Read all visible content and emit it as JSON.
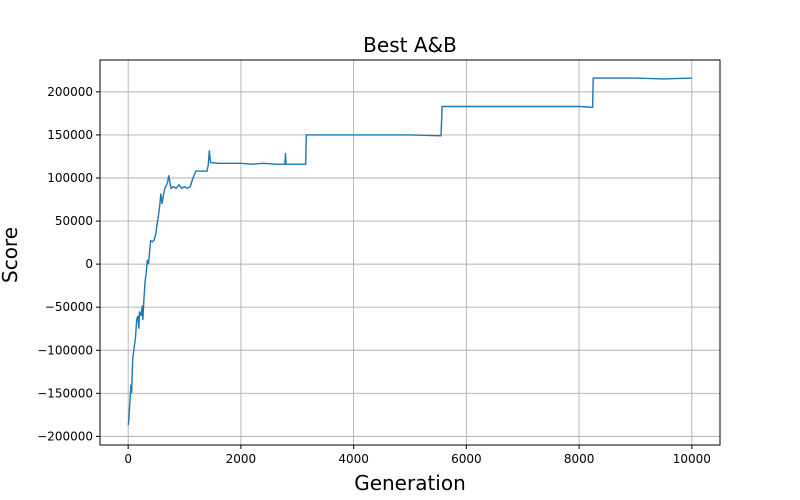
{
  "chart_data": {
    "type": "line",
    "title": "Best A&B",
    "xlabel": "Generation",
    "ylabel": "Score",
    "xlim": [
      -500,
      10500
    ],
    "ylim": [
      -210000,
      237000
    ],
    "x_ticks": [
      0,
      2000,
      4000,
      6000,
      8000,
      10000
    ],
    "x_tick_labels": [
      "0",
      "2000",
      "4000",
      "6000",
      "8000",
      "10000"
    ],
    "y_ticks": [
      -200000,
      -150000,
      -100000,
      -50000,
      0,
      50000,
      100000,
      150000,
      200000
    ],
    "y_tick_labels": [
      "−200000",
      "−150000",
      "−100000",
      "−50000",
      "0",
      "50000",
      "100000",
      "150000",
      "200000"
    ],
    "grid": true,
    "line_color": "#1f77b4",
    "series": [
      {
        "points": [
          [
            0,
            -187000
          ],
          [
            10,
            -182000
          ],
          [
            30,
            -160000
          ],
          [
            50,
            -140000
          ],
          [
            60,
            -150000
          ],
          [
            80,
            -110000
          ],
          [
            100,
            -100000
          ],
          [
            130,
            -85000
          ],
          [
            150,
            -65000
          ],
          [
            170,
            -60000
          ],
          [
            190,
            -75000
          ],
          [
            200,
            -55000
          ],
          [
            230,
            -60000
          ],
          [
            250,
            -48000
          ],
          [
            260,
            -65000
          ],
          [
            280,
            -40000
          ],
          [
            300,
            -20000
          ],
          [
            320,
            -10000
          ],
          [
            340,
            5000
          ],
          [
            360,
            0
          ],
          [
            380,
            15000
          ],
          [
            400,
            27000
          ],
          [
            430,
            26000
          ],
          [
            460,
            28000
          ],
          [
            490,
            35000
          ],
          [
            510,
            45000
          ],
          [
            540,
            58000
          ],
          [
            560,
            68000
          ],
          [
            580,
            82000
          ],
          [
            600,
            70000
          ],
          [
            620,
            78000
          ],
          [
            650,
            88000
          ],
          [
            680,
            92000
          ],
          [
            700,
            95000
          ],
          [
            720,
            103000
          ],
          [
            740,
            95000
          ],
          [
            760,
            88000
          ],
          [
            800,
            90000
          ],
          [
            850,
            88000
          ],
          [
            900,
            92000
          ],
          [
            950,
            88000
          ],
          [
            1000,
            90000
          ],
          [
            1050,
            88000
          ],
          [
            1100,
            90000
          ],
          [
            1150,
            100000
          ],
          [
            1200,
            108000
          ],
          [
            1300,
            108000
          ],
          [
            1400,
            108000
          ],
          [
            1420,
            115000
          ],
          [
            1440,
            132000
          ],
          [
            1460,
            118000
          ],
          [
            1600,
            117000
          ],
          [
            1800,
            117000
          ],
          [
            2000,
            117000
          ],
          [
            2200,
            116000
          ],
          [
            2400,
            117000
          ],
          [
            2600,
            116000
          ],
          [
            2780,
            116000
          ],
          [
            2790,
            129000
          ],
          [
            2800,
            116000
          ],
          [
            3000,
            116000
          ],
          [
            3150,
            116000
          ],
          [
            3160,
            150000
          ],
          [
            3500,
            150000
          ],
          [
            4000,
            150000
          ],
          [
            4500,
            150000
          ],
          [
            5000,
            150000
          ],
          [
            5550,
            149000
          ],
          [
            5570,
            183000
          ],
          [
            6000,
            183000
          ],
          [
            7000,
            183000
          ],
          [
            8000,
            183000
          ],
          [
            8240,
            182000
          ],
          [
            8250,
            216000
          ],
          [
            9000,
            216000
          ],
          [
            9500,
            215000
          ],
          [
            10000,
            216000
          ]
        ]
      }
    ]
  }
}
